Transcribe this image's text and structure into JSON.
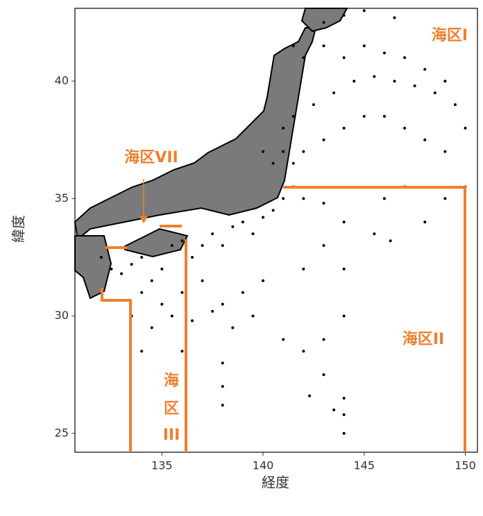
{
  "chart_data": {
    "type": "scatter",
    "xlabel": "経度",
    "ylabel": "緯度",
    "xlim": [
      130.7,
      150.6
    ],
    "ylim": [
      24.2,
      43.1
    ],
    "xticks": [
      135,
      140,
      145,
      150
    ],
    "yticks": [
      25,
      30,
      35,
      40
    ],
    "color": "#000000",
    "annotation_color": "#f07f2d",
    "annotations": [
      "海区I",
      "海区VII",
      "海区II",
      "海",
      "区",
      "III"
    ],
    "x": [
      132,
      132.5,
      133,
      133.5,
      134,
      134.5,
      135,
      135.5,
      136,
      136.5,
      137,
      137.5,
      138,
      138.5,
      139,
      139.5,
      140,
      140.5,
      141,
      141.5,
      134,
      135,
      136,
      137,
      138,
      139,
      140,
      133.5,
      134.5,
      135.5,
      136.5,
      137.5,
      138.5,
      139.5,
      138,
      138,
      138,
      136,
      134,
      141,
      142,
      142.3,
      143,
      143.5,
      144,
      144,
      144,
      143,
      144,
      144,
      143,
      142,
      141.5,
      142,
      143,
      144,
      145,
      146,
      147,
      148,
      149,
      149.5,
      148.5,
      147.5,
      146.5,
      145.5,
      144.5,
      143.5,
      142.5,
      141.5,
      141,
      141,
      141.5,
      142,
      143,
      144,
      145,
      146,
      147,
      148,
      149,
      150,
      147,
      148,
      149,
      150,
      146,
      145,
      144,
      143,
      146.5,
      145.5,
      146.3,
      140.5,
      140,
      142,
      143,
      144
    ],
    "values": [
      32.5,
      32,
      31.8,
      32.2,
      32.5,
      31.5,
      32,
      33,
      33.2,
      32.5,
      33,
      33.5,
      33,
      33.8,
      34,
      33.5,
      34.2,
      34.5,
      35,
      35.5,
      31,
      30.5,
      31,
      31.5,
      30.5,
      31,
      31.5,
      30,
      29.5,
      30,
      29.8,
      30.2,
      29.5,
      30,
      28,
      27,
      26.2,
      28.5,
      28.5,
      29,
      28.5,
      26.6,
      27.5,
      26,
      25.8,
      25,
      26.5,
      29,
      30,
      32,
      33,
      32,
      41.5,
      41,
      41.5,
      41,
      41.5,
      41.2,
      41,
      40.5,
      40,
      39,
      39.5,
      39.8,
      40,
      40.2,
      40,
      39.5,
      39,
      38.5,
      38,
      37,
      36.5,
      37,
      37.5,
      38,
      38.5,
      38.5,
      38,
      37.5,
      37,
      38,
      35.5,
      34,
      35,
      35.5,
      35,
      43,
      42.8,
      42.5,
      42.7,
      33.5,
      33.2,
      36.5,
      37,
      35,
      34.8,
      34
    ]
  }
}
